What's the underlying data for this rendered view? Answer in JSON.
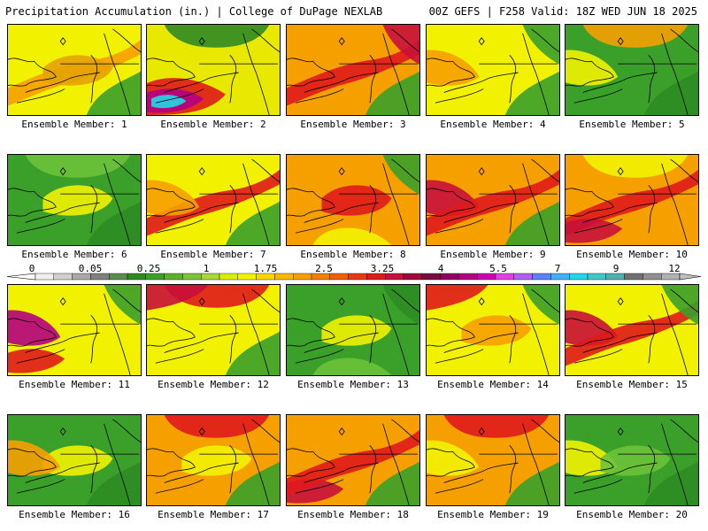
{
  "header": {
    "title_left": "Precipitation Accumulation (in.) | College of DuPage NEXLAB",
    "title_right": "00Z GEFS | F258 Valid: 18Z WED JUN 18 2025"
  },
  "panels": [
    {
      "label": "Ensemble Member: 1",
      "base": "#f2f200",
      "blobs": [
        [
          "#f6a000",
          "r1"
        ],
        [
          "#3aa02a",
          "se"
        ],
        [
          "#e5a300",
          "c"
        ]
      ]
    },
    {
      "label": "Ensemble Member: 2",
      "base": "#e8e800",
      "blobs": [
        [
          "#2e8b22",
          "n"
        ],
        [
          "#e0191c",
          "swb"
        ],
        [
          "#b40081",
          "sw"
        ],
        [
          "#20d8e8",
          "sw2"
        ]
      ]
    },
    {
      "label": "Ensemble Member: 3",
      "base": "#f6a000",
      "blobs": [
        [
          "#e0191c",
          "r1"
        ],
        [
          "#3aa02a",
          "se"
        ],
        [
          "#c8103a",
          "ne"
        ]
      ]
    },
    {
      "label": "Ensemble Member: 4",
      "base": "#f2f200",
      "blobs": [
        [
          "#3aa02a",
          "ne"
        ],
        [
          "#f6a000",
          "w"
        ],
        [
          "#3aa02a",
          "se"
        ]
      ]
    },
    {
      "label": "Ensemble Member: 5",
      "base": "#3aa02a",
      "blobs": [
        [
          "#f2f200",
          "w"
        ],
        [
          "#f6a000",
          "n"
        ],
        [
          "#2e8b22",
          "se"
        ]
      ]
    },
    {
      "label": "Ensemble Member: 6",
      "base": "#3aa02a",
      "blobs": [
        [
          "#f2f200",
          "c"
        ],
        [
          "#2e8b22",
          "se"
        ],
        [
          "#6dc23a",
          "n"
        ]
      ]
    },
    {
      "label": "Ensemble Member: 7",
      "base": "#f2f200",
      "blobs": [
        [
          "#e0191c",
          "r1"
        ],
        [
          "#3aa02a",
          "se"
        ],
        [
          "#f6a000",
          "w"
        ]
      ]
    },
    {
      "label": "Ensemble Member: 8",
      "base": "#f6a000",
      "blobs": [
        [
          "#e0191c",
          "c"
        ],
        [
          "#3aa02a",
          "ne"
        ],
        [
          "#f2f200",
          "s"
        ]
      ]
    },
    {
      "label": "Ensemble Member: 9",
      "base": "#f6a000",
      "blobs": [
        [
          "#c8103a",
          "w"
        ],
        [
          "#e0191c",
          "r1"
        ],
        [
          "#3aa02a",
          "se"
        ]
      ]
    },
    {
      "label": "Ensemble Member: 10",
      "base": "#f6a000",
      "blobs": [
        [
          "#e0191c",
          "r1"
        ],
        [
          "#c8103a",
          "sw"
        ],
        [
          "#f2f200",
          "n"
        ]
      ]
    },
    {
      "label": "Ensemble Member: 11",
      "base": "#f2f200",
      "blobs": [
        [
          "#e0191c",
          "sw"
        ],
        [
          "#b40081",
          "w"
        ],
        [
          "#3aa02a",
          "ne"
        ]
      ]
    },
    {
      "label": "Ensemble Member: 12",
      "base": "#f2f200",
      "blobs": [
        [
          "#e0191c",
          "n"
        ],
        [
          "#3aa02a",
          "se"
        ],
        [
          "#c8103a",
          "nw"
        ]
      ]
    },
    {
      "label": "Ensemble Member: 13",
      "base": "#3aa02a",
      "blobs": [
        [
          "#f2f200",
          "c"
        ],
        [
          "#2e8b22",
          "ne"
        ],
        [
          "#6dc23a",
          "s"
        ]
      ]
    },
    {
      "label": "Ensemble Member: 14",
      "base": "#f2f200",
      "blobs": [
        [
          "#3aa02a",
          "ne"
        ],
        [
          "#e0191c",
          "nw"
        ],
        [
          "#f6a000",
          "c"
        ]
      ]
    },
    {
      "label": "Ensemble Member: 15",
      "base": "#f2f200",
      "blobs": [
        [
          "#c8103a",
          "w"
        ],
        [
          "#e0191c",
          "r1"
        ],
        [
          "#3aa02a",
          "ne"
        ]
      ]
    },
    {
      "label": "Ensemble Member: 16",
      "base": "#3aa02a",
      "blobs": [
        [
          "#f2f200",
          "c"
        ],
        [
          "#f6a000",
          "w"
        ],
        [
          "#2e8b22",
          "se"
        ]
      ]
    },
    {
      "label": "Ensemble Member: 17",
      "base": "#f6a000",
      "blobs": [
        [
          "#3aa02a",
          "se"
        ],
        [
          "#f2f200",
          "c"
        ],
        [
          "#e0191c",
          "n"
        ]
      ]
    },
    {
      "label": "Ensemble Member: 18",
      "base": "#f6a000",
      "blobs": [
        [
          "#c8103a",
          "sw"
        ],
        [
          "#e0191c",
          "r1"
        ],
        [
          "#3aa02a",
          "se"
        ]
      ]
    },
    {
      "label": "Ensemble Member: 19",
      "base": "#f6a000",
      "blobs": [
        [
          "#e0191c",
          "n"
        ],
        [
          "#3aa02a",
          "se"
        ],
        [
          "#f2f200",
          "w"
        ]
      ]
    },
    {
      "label": "Ensemble Member: 20",
      "base": "#3aa02a",
      "blobs": [
        [
          "#f2f200",
          "w"
        ],
        [
          "#2e8b22",
          "se"
        ],
        [
          "#6dc23a",
          "c"
        ]
      ]
    }
  ],
  "colorbar": {
    "labels": [
      "0",
      "0.05",
      "0.25",
      "1",
      "1.75",
      "2.5",
      "3.25",
      "4",
      "5.5",
      "7",
      "9",
      "12"
    ],
    "colors": [
      "#f0f0f0",
      "#d0d0d0",
      "#a8a8a8",
      "#808080",
      "#5a8c50",
      "#2e8b22",
      "#3aa02a",
      "#5cb030",
      "#7dc43a",
      "#a8d83a",
      "#d8f000",
      "#f2f200",
      "#f8d800",
      "#f6b800",
      "#f6a000",
      "#f28000",
      "#ee6000",
      "#e83818",
      "#e0191c",
      "#c8103a",
      "#a00a3a",
      "#7a0a40",
      "#900060",
      "#b40081",
      "#d000b0",
      "#e040e0",
      "#b060f0",
      "#6080f8",
      "#40b0f8",
      "#20d8e8",
      "#40c8c8",
      "#50b0b0",
      "#707070",
      "#909090",
      "#b0b0b0"
    ]
  }
}
